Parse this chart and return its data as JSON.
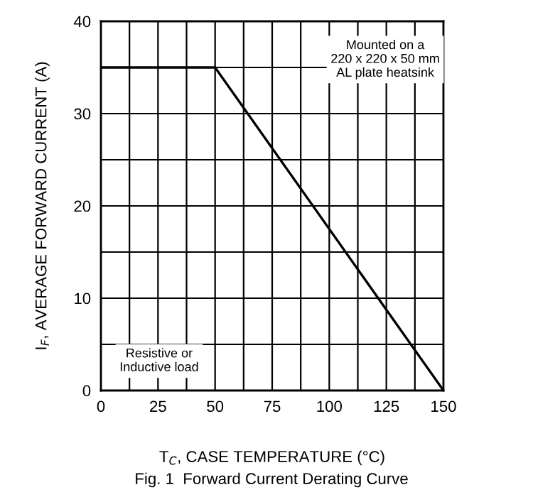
{
  "chart_data": {
    "type": "line",
    "x": [
      0,
      50,
      150
    ],
    "series": [
      {
        "color": "#000000",
        "values": [
          35,
          35,
          0
        ]
      }
    ],
    "xlabel": "T$_{C}$, CASE TEMPERATURE (°C)",
    "ylabel": "I$_{F}$, AVERAGE FORWARD CURRENT (A)",
    "xlim": [
      0,
      150
    ],
    "ylim": [
      0,
      40
    ],
    "xticks": [
      0,
      {
        "value": 12.5,
        "label": null
      },
      25,
      {
        "value": 37.5,
        "label": null
      },
      50,
      {
        "value": 62.5,
        "label": null
      },
      75,
      {
        "value": 87.5,
        "label": null
      },
      100,
      {
        "value": 112.5,
        "label": null
      },
      125,
      {
        "value": 137.5,
        "label": null
      },
      150
    ],
    "yticks": [
      0,
      {
        "value": 5,
        "label": null
      },
      10,
      {
        "value": 15,
        "label": null
      },
      20,
      {
        "value": 25,
        "label": null
      },
      30,
      {
        "value": 35,
        "label": null
      },
      40
    ],
    "grid": true,
    "marker": "none",
    "line_style": "solid",
    "annotations": [
      "Mounted on a\n220 x 220 x 50 mm\nAL plate heatsink",
      "Resistive or\nInductive load",
      "Fig. 1  Forward Current Derating Curve"
    ]
  }
}
